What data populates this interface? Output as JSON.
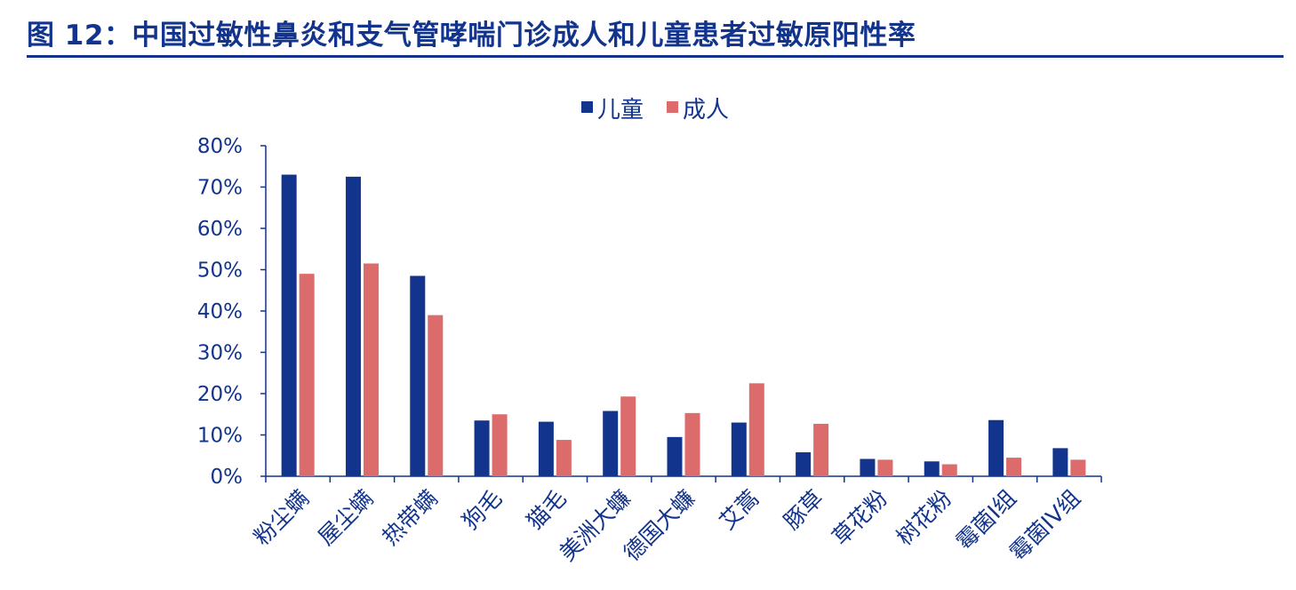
{
  "figure": {
    "title": "图 12：中国过敏性鼻炎和支气管哮喘门诊成人和儿童患者过敏原阳性率"
  },
  "colors": {
    "title": "#12348c",
    "axis_text": "#12348c",
    "axis_line": "#12348c"
  },
  "chart_data": {
    "type": "bar",
    "title": "",
    "xlabel": "",
    "ylabel": "",
    "ylim": [
      0,
      80
    ],
    "y_ticks": [
      "0%",
      "10%",
      "20%",
      "30%",
      "40%",
      "50%",
      "60%",
      "70%",
      "80%"
    ],
    "y_tick_values": [
      0,
      10,
      20,
      30,
      40,
      50,
      60,
      70,
      80
    ],
    "y_unit": "%",
    "grid": false,
    "legend_position": "top-center",
    "categories": [
      "粉尘螨",
      "屋尘螨",
      "热带螨",
      "狗毛",
      "猫毛",
      "美洲大蠊",
      "德国大蠊",
      "艾蒿",
      "豚草",
      "草花粉",
      "树花粉",
      "霉菌I组",
      "霉菌IV组"
    ],
    "series": [
      {
        "name": "儿童",
        "color": "#12348c",
        "values": [
          73,
          72.5,
          48.5,
          13.5,
          13.2,
          15.8,
          9.5,
          13,
          5.8,
          4.2,
          3.6,
          13.6,
          6.8
        ]
      },
      {
        "name": "成人",
        "color": "#dc6b6b",
        "values": [
          49,
          51.5,
          39,
          15,
          8.8,
          19.3,
          15.3,
          22.5,
          12.7,
          4,
          2.9,
          4.5,
          4
        ]
      }
    ]
  }
}
